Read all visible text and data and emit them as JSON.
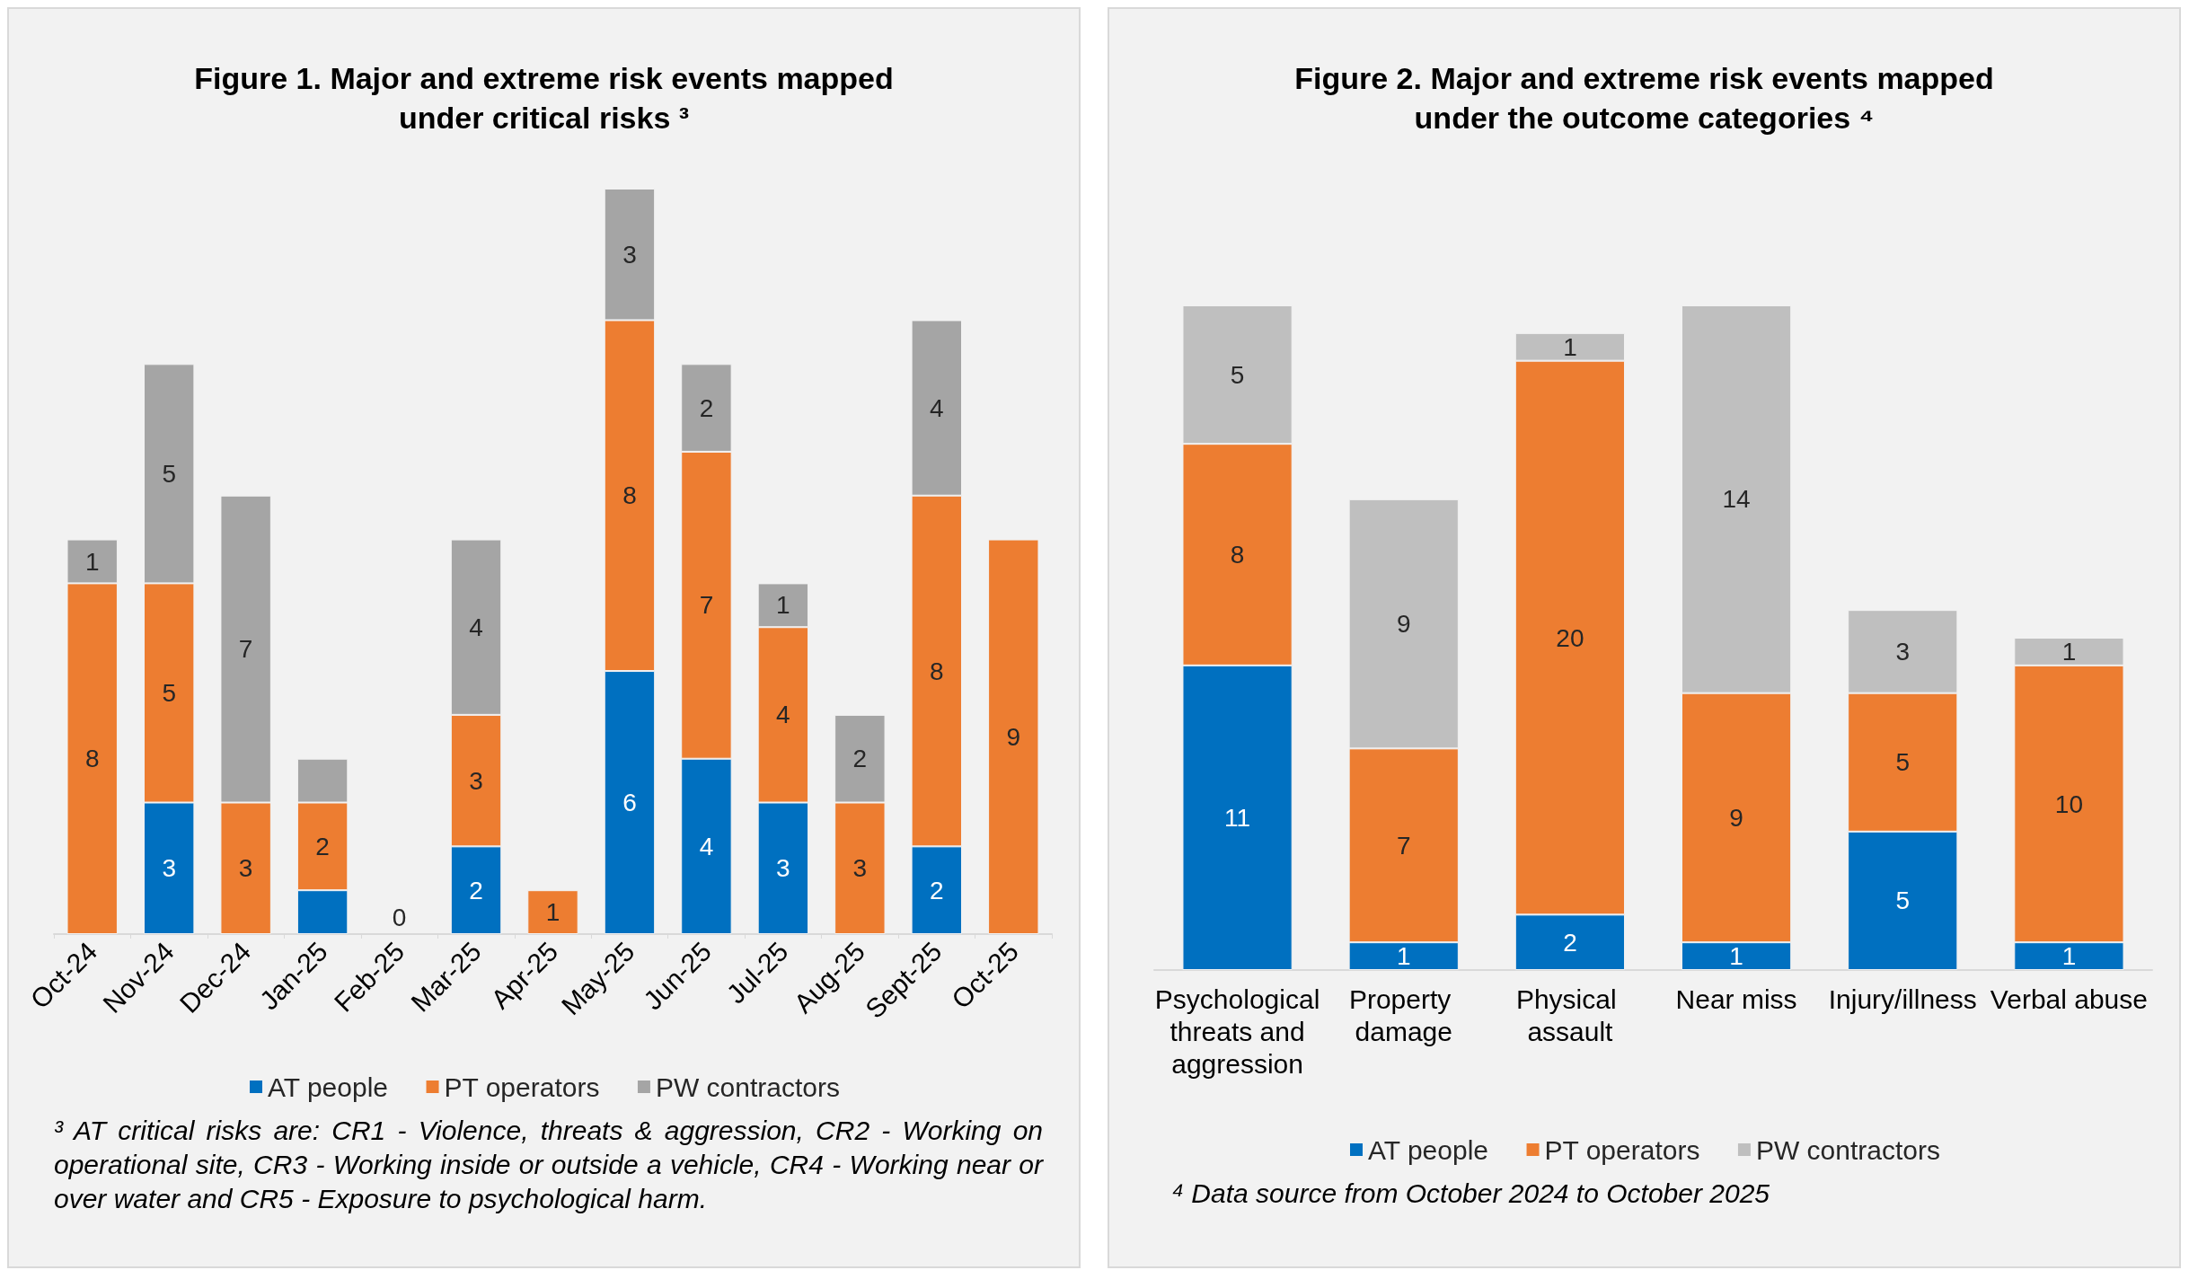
{
  "chart_data": [
    {
      "type": "bar",
      "title": "Figure 1. Major and extreme risk events mapped\nunder critical risks ³",
      "categories": [
        "Oct-24",
        "Nov-24",
        "Dec-24",
        "Jan-25",
        "Feb-25",
        "Mar-25",
        "Apr-25",
        "May-25",
        "Jun-25",
        "Jul-25",
        "Aug-25",
        "Sept-25",
        "Oct-25"
      ],
      "stacked": true,
      "legend": "bottom",
      "grid": false,
      "series": [
        {
          "name": "AT people",
          "color": "#0070c0",
          "values": [
            0,
            3,
            0,
            1,
            0,
            2,
            0,
            6,
            4,
            3,
            0,
            2,
            0
          ],
          "value_labels": [
            null,
            "3",
            null,
            null,
            "0",
            "2",
            null,
            "6",
            "4",
            "3",
            null,
            "2",
            null
          ]
        },
        {
          "name": "PT operators",
          "color": "#ed7d31",
          "values": [
            8,
            5,
            3,
            2,
            0,
            3,
            1,
            8,
            7,
            4,
            3,
            8,
            9
          ],
          "value_labels": [
            "8",
            "5",
            "3",
            "2",
            null,
            "3",
            "1",
            "8",
            "7",
            "4",
            "3",
            "8",
            "9"
          ]
        },
        {
          "name": "PW contractors",
          "color": "#a5a5a5",
          "values": [
            1,
            5,
            7,
            1,
            0,
            4,
            0,
            3,
            2,
            1,
            2,
            4,
            0
          ],
          "value_labels": [
            "1",
            "5",
            "7",
            null,
            null,
            "4",
            null,
            "3",
            "2",
            "1",
            "2",
            "4",
            null
          ]
        }
      ],
      "annotations": [
        "³ AT critical risks are: CR1 - Violence, threats & aggression, CR2 - Working on operational site, CR3 - Working inside or outside a vehicle, CR4 - Working near or over water and CR5 - Exposure to psychological harm."
      ]
    },
    {
      "type": "bar",
      "title": "Figure 2. Major and extreme risk events mapped\nunder the outcome categories ⁴",
      "categories": [
        "Psychological threats and aggression",
        "Property damage",
        "Physical assault",
        "Near miss",
        "Injury/illness",
        "Verbal abuse"
      ],
      "stacked": true,
      "legend": "bottom",
      "grid": false,
      "data_labels": true,
      "series": [
        {
          "name": "AT people",
          "color": "#0070c0",
          "values": [
            11,
            1,
            2,
            1,
            5,
            1
          ]
        },
        {
          "name": "PT operators",
          "color": "#ed7d31",
          "values": [
            8,
            7,
            20,
            9,
            5,
            10
          ]
        },
        {
          "name": "PW contractors",
          "color": "#bfbfbf",
          "values": [
            5,
            9,
            1,
            14,
            3,
            1
          ]
        }
      ],
      "annotations": [
        "⁴ Data source from October 2024 to October 2025"
      ]
    }
  ]
}
